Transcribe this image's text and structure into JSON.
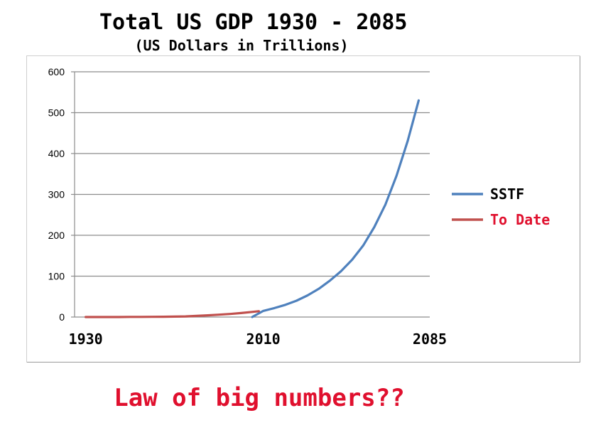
{
  "title": "Total US GDP 1930 - 2085",
  "subtitle": "(US Dollars in Trillions)",
  "footer": "Law of big numbers??",
  "chart_data": {
    "type": "line",
    "title": "Total US GDP 1930 - 2085",
    "subtitle": "(US Dollars in Trillions)",
    "xlabel": "",
    "ylabel": "",
    "ylim": [
      0,
      600
    ],
    "yticks": [
      0,
      100,
      200,
      300,
      400,
      500,
      600
    ],
    "xtick_labels": [
      {
        "label": "1930",
        "x": 1930
      },
      {
        "label": "2010",
        "x": 2010
      },
      {
        "label": "2085",
        "x": 2085
      }
    ],
    "xlim": [
      1925,
      2085
    ],
    "grid": true,
    "legend_position": "right",
    "series": [
      {
        "name": "SSTF",
        "color": "#4f81bd",
        "x": [
          2005,
          2010,
          2015,
          2020,
          2025,
          2030,
          2035,
          2040,
          2045,
          2050,
          2055,
          2060,
          2065,
          2070,
          2075,
          2080
        ],
        "y": [
          0,
          15,
          22,
          30,
          40,
          53,
          69,
          89,
          112,
          140,
          175,
          220,
          275,
          345,
          430,
          530
        ]
      },
      {
        "name": "To Date",
        "color": "#c0504d",
        "x": [
          1930,
          1935,
          1940,
          1945,
          1950,
          1955,
          1960,
          1965,
          1970,
          1975,
          1980,
          1985,
          1990,
          1995,
          2000,
          2005,
          2008
        ],
        "y": [
          0,
          0,
          0,
          0,
          0.3,
          0.4,
          0.5,
          0.7,
          1,
          1.6,
          2.8,
          4.2,
          5.8,
          7.4,
          9.8,
          12.6,
          14.3
        ]
      }
    ]
  }
}
